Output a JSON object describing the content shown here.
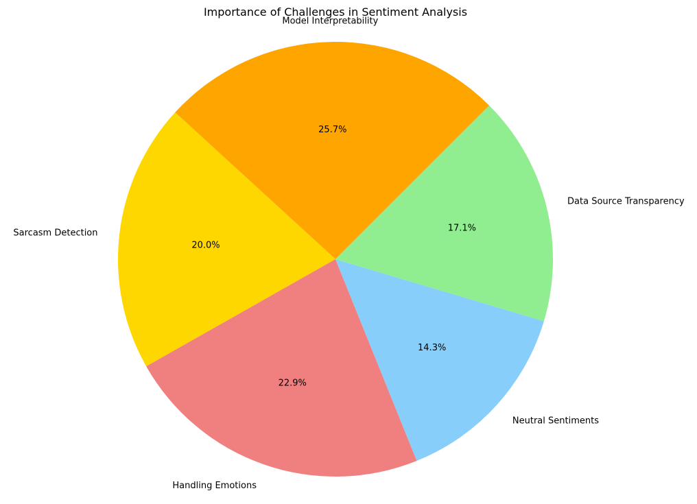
{
  "chart_data": {
    "type": "pie",
    "title": "Importance of Challenges in Sentiment Analysis",
    "slices": [
      {
        "label": "Model Interpretability",
        "value": 25.7,
        "pct_label": "25.7%",
        "color": "#FFA500"
      },
      {
        "label": "Sarcasm Detection",
        "value": 20.0,
        "pct_label": "20.0%",
        "color": "#FFD700"
      },
      {
        "label": "Handling Emotions",
        "value": 22.9,
        "pct_label": "22.9%",
        "color": "#F08080"
      },
      {
        "label": "Neutral Sentiments",
        "value": 14.3,
        "pct_label": "14.3%",
        "color": "#87CEFA"
      },
      {
        "label": "Data Source Transparency",
        "value": 17.1,
        "pct_label": "17.1%",
        "color": "#90EE90"
      }
    ],
    "start_angle_deg": 45,
    "direction": "counterclockwise",
    "legend": "none"
  }
}
